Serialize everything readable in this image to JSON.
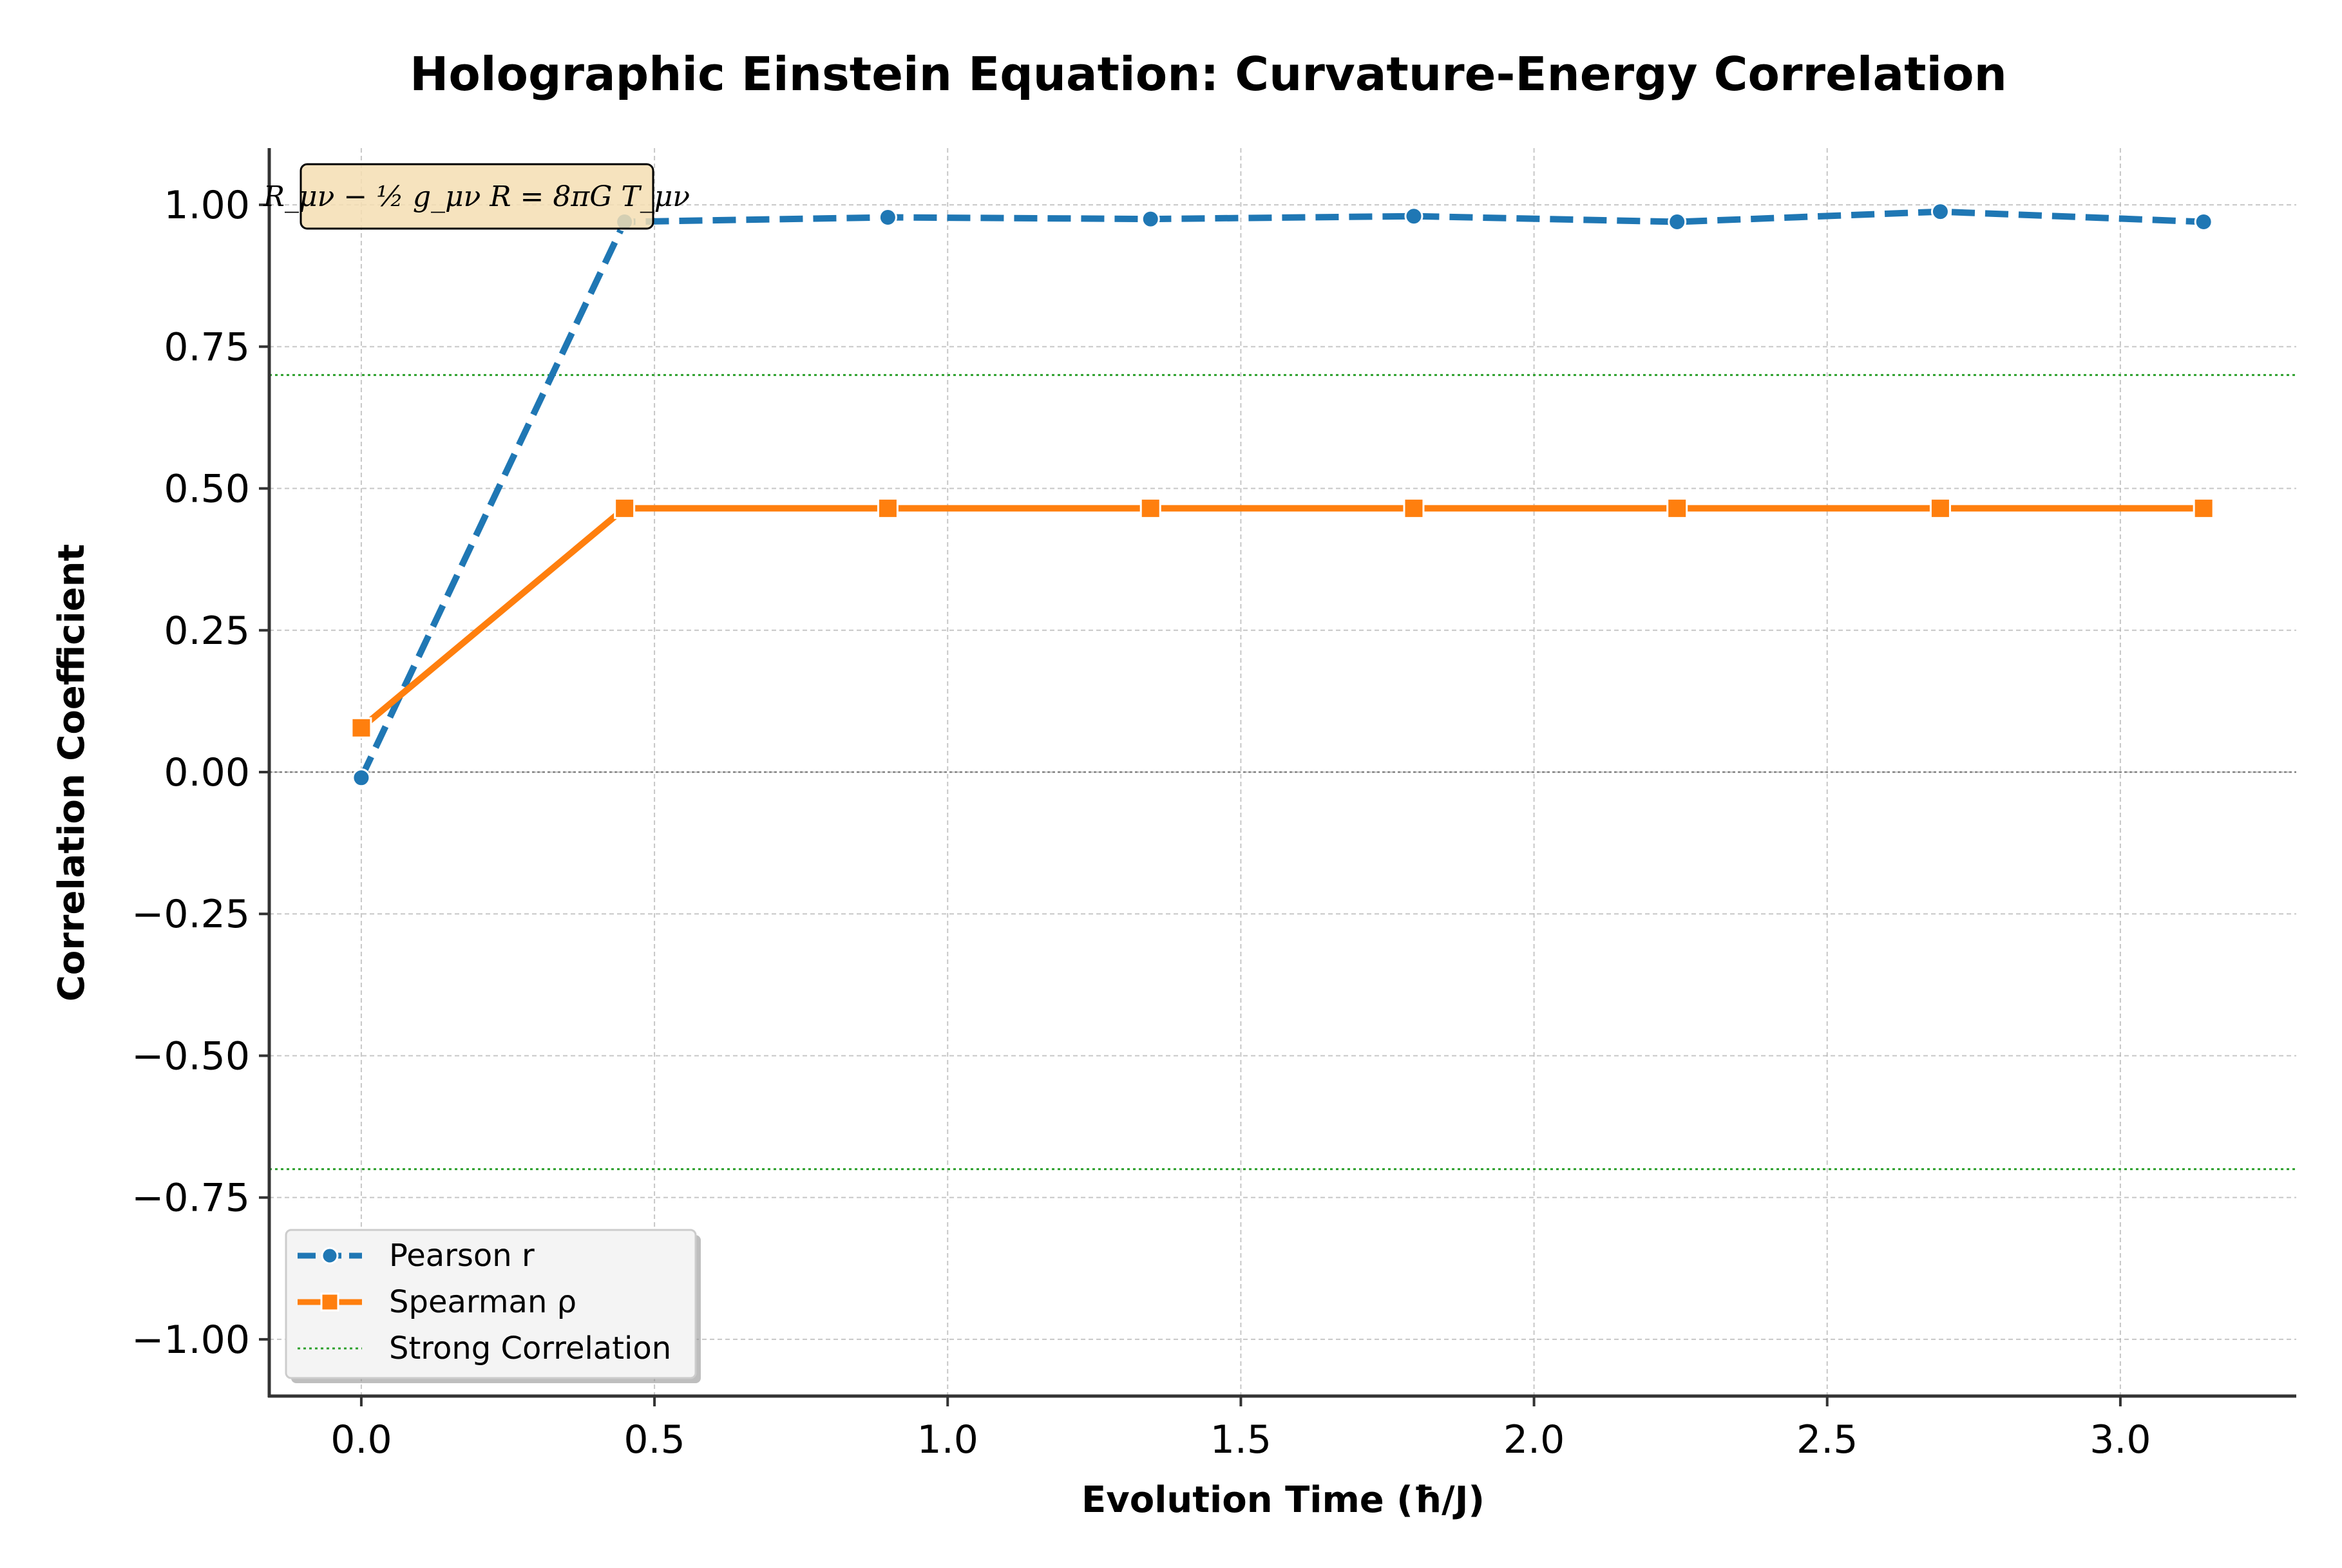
{
  "chart_data": {
    "type": "line",
    "title": "Holographic Einstein Equation: Curvature-Energy Correlation",
    "xlabel": "Evolution Time (ħ/J)",
    "ylabel": "Correlation Coefficient",
    "xlim": [
      -0.157,
      3.3
    ],
    "ylim": [
      -1.1,
      1.1
    ],
    "x_ticks": [
      0.0,
      0.5,
      1.0,
      1.5,
      2.0,
      2.5,
      3.0
    ],
    "x_tick_labels": [
      "0.0",
      "0.5",
      "1.0",
      "1.5",
      "2.0",
      "2.5",
      "3.0"
    ],
    "y_ticks": [
      1.0,
      0.75,
      0.5,
      0.25,
      0.0,
      -0.25,
      -0.5,
      -0.75,
      -1.0
    ],
    "y_tick_labels": [
      "1.00",
      "0.75",
      "0.50",
      "0.25",
      "0.00",
      "−0.25",
      "−0.50",
      "−0.75",
      "−1.00"
    ],
    "x": [
      0.0,
      0.449,
      0.898,
      1.346,
      1.795,
      2.244,
      2.693,
      3.142
    ],
    "series": [
      {
        "name": "Pearson r",
        "values": [
          -0.01,
          0.97,
          0.978,
          0.975,
          0.98,
          0.97,
          0.988,
          0.97
        ],
        "color": "#1f77b4",
        "style": "dashed",
        "marker": "circle"
      },
      {
        "name": "Spearman ρ",
        "values": [
          0.078,
          0.465,
          0.465,
          0.465,
          0.465,
          0.465,
          0.465,
          0.465
        ],
        "color": "#ff7f0e",
        "style": "solid",
        "marker": "square"
      }
    ],
    "reference_lines": [
      {
        "name": "Strong Correlation",
        "y": 0.7,
        "color": "#2ca02c",
        "style": "dotted"
      },
      {
        "y": -0.7,
        "color": "#2ca02c",
        "style": "dotted"
      },
      {
        "y": 0.0,
        "color": "#808080",
        "style": "dotted"
      }
    ],
    "annotation": "R_μν − ½ g_μν R = 8πG T_μν",
    "legend": {
      "placement": "lower-left",
      "entries": [
        "Pearson r",
        "Spearman ρ",
        "Strong Correlation"
      ]
    },
    "grid": true
  }
}
